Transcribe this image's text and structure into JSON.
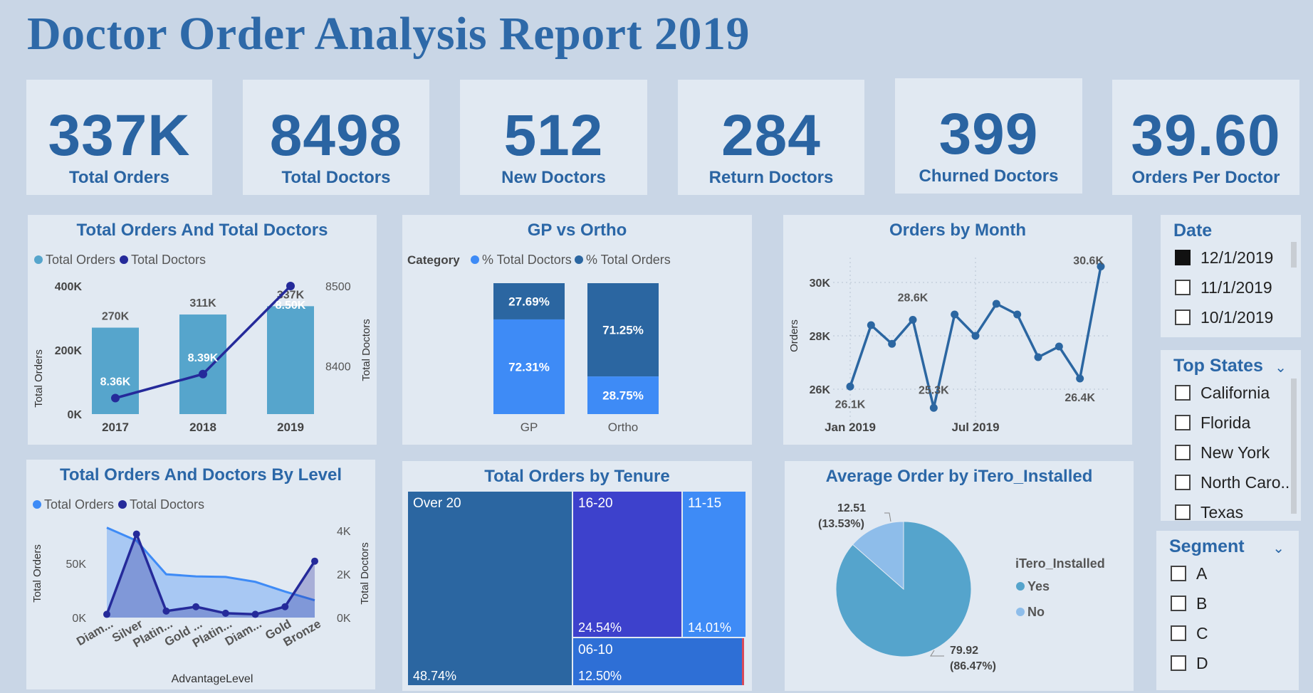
{
  "title": "Doctor Order Analysis Report 2019",
  "colors": {
    "background": "#c9d6e6",
    "card": "#e1e9f2",
    "title": "#2e69a8",
    "bar_light": "#56a5cc",
    "navy": "#252a9a",
    "gp_dark": "#2b66a1",
    "gp_light": "#3e8bf6"
  },
  "kpis": [
    {
      "value": "337K",
      "label": "Total Orders"
    },
    {
      "value": "8498",
      "label": "Total Doctors"
    },
    {
      "value": "512",
      "label": "New Doctors"
    },
    {
      "value": "284",
      "label": "Return Doctors"
    },
    {
      "value": "399",
      "label": "Churned Doctors"
    },
    {
      "value": "39.60",
      "label": "Orders Per Doctor"
    }
  ],
  "chart_data": [
    {
      "type": "bar",
      "title": "Total Orders And Total Doctors",
      "legend": [
        "Total Orders",
        "Total Doctors"
      ],
      "categories": [
        "2017",
        "2018",
        "2019"
      ],
      "series": [
        {
          "name": "Total Orders",
          "values": [
            270000,
            311000,
            337000
          ],
          "labels": [
            "270K",
            "311K",
            "337K"
          ]
        },
        {
          "name": "Total Doctors",
          "values": [
            8360,
            8390,
            8500
          ],
          "labels": [
            "8.36K",
            "8.39K",
            "8.50K"
          ]
        }
      ],
      "ylabel": "Total Orders",
      "y2label": "Total Doctors",
      "yticks": [
        "0K",
        "200K",
        "400K"
      ],
      "y2ticks": [
        "8400",
        "8500"
      ],
      "ylim": [
        0,
        400000
      ],
      "y2lim": [
        8340,
        8500
      ]
    },
    {
      "type": "bar",
      "title": "GP vs Ortho",
      "legend_title": "Category",
      "legend": [
        "% Total Doctors",
        "% Total Orders"
      ],
      "categories": [
        "GP",
        "Ortho"
      ],
      "series": [
        {
          "name": "% Total Doctors",
          "values": [
            72.31,
            28.75
          ],
          "labels": [
            "72.31%",
            "28.75%"
          ]
        },
        {
          "name": "% Total Orders",
          "values": [
            27.69,
            71.25
          ],
          "labels": [
            "27.69%",
            "71.25%"
          ]
        }
      ]
    },
    {
      "type": "line",
      "title": "Orders by Month",
      "ylabel": "Orders",
      "yticks": [
        "26K",
        "28K",
        "30K"
      ],
      "xticks": [
        "Jan 2019",
        "Jul 2019"
      ],
      "ylim": [
        25000,
        31000
      ],
      "values": [
        26100,
        28400,
        27700,
        28600,
        25300,
        28800,
        28000,
        29200,
        28800,
        27200,
        27600,
        26400,
        30600
      ],
      "annotations": [
        "26.1K",
        "28.6K",
        "25.3K",
        "26.4K",
        "30.6K"
      ]
    },
    {
      "type": "area",
      "title": "Total Orders And Doctors By Level",
      "legend": [
        "Total Orders",
        "Total Doctors"
      ],
      "xlabel": "AdvantageLevel",
      "ylabel": "Total Orders",
      "y2label": "Total Doctors",
      "categories": [
        "Diam...",
        "Silver",
        "Platin...",
        "Gold ...",
        "Platin...",
        "Diam...",
        "Gold",
        "Bronze"
      ],
      "yticks": [
        "0K",
        "50K"
      ],
      "y2ticks": [
        "0K",
        "2K",
        "4K"
      ],
      "ylim": [
        0,
        90000
      ],
      "y2lim": [
        0,
        4000
      ],
      "series": [
        {
          "name": "Total Orders",
          "values": [
            83000,
            71000,
            40000,
            38000,
            37500,
            33000,
            24000,
            16000
          ]
        },
        {
          "name": "Total Doctors",
          "values": [
            150,
            3850,
            300,
            500,
            200,
            150,
            500,
            2600
          ]
        }
      ]
    },
    {
      "type": "treemap",
      "title": "Total Orders by Tenure",
      "items": [
        {
          "name": "Over 20",
          "pct": "48.74%",
          "value": 48.74
        },
        {
          "name": "16-20",
          "pct": "24.54%",
          "value": 24.54
        },
        {
          "name": "11-15",
          "pct": "14.01%",
          "value": 14.01
        },
        {
          "name": "06-10",
          "pct": "12.50%",
          "value": 12.5
        }
      ]
    },
    {
      "type": "pie",
      "title": "Average Order by iTero_Installed",
      "legend_title": "iTero_Installed",
      "slices": [
        {
          "name": "Yes",
          "value": 79.92,
          "label1": "79.92",
          "label2": "(86.47%)",
          "color": "#55a4cc"
        },
        {
          "name": "No",
          "value": 12.51,
          "label1": "12.51",
          "label2": "(13.53%)",
          "color": "#8ebdea"
        }
      ]
    }
  ],
  "slicers": {
    "date": {
      "title": "Date",
      "options": [
        {
          "label": "12/1/2019",
          "checked": true
        },
        {
          "label": "11/1/2019",
          "checked": false
        },
        {
          "label": "10/1/2019",
          "checked": false
        }
      ]
    },
    "states": {
      "title": "Top States",
      "options": [
        "California",
        "Florida",
        "New York",
        "North Caro...",
        "Texas"
      ]
    },
    "segment": {
      "title": "Segment",
      "options": [
        "A",
        "B",
        "C",
        "D"
      ]
    }
  }
}
